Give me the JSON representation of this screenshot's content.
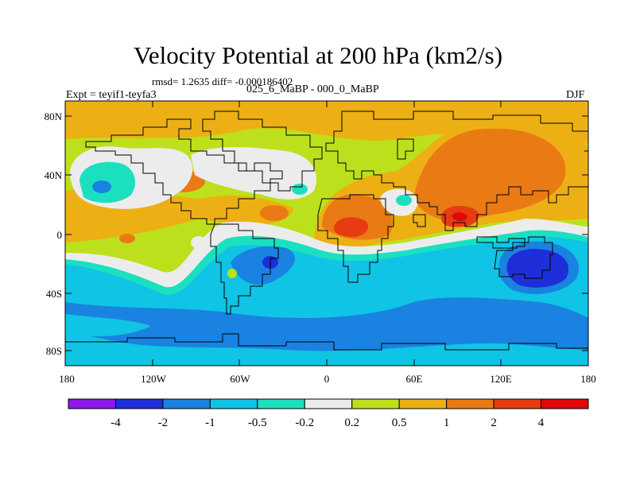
{
  "map": {
    "title": "Velocity Potential at 200 hPa (km2/s)",
    "stats": "rmsd= 1.2635 diff= -0.000186402",
    "experiment": "Expt = teyif1-teyfa3",
    "subtitle": "025_6_MaBP - 000_0_MaBP",
    "season": "DJF",
    "lat_ticks": [
      "80N",
      "40N",
      "0",
      "40S",
      "80S"
    ],
    "lon_ticks": [
      "180",
      "120W",
      "60W",
      "0",
      "60E",
      "120E",
      "180"
    ]
  },
  "colorbar": {
    "colors": [
      "#8c1aea",
      "#1e2ed8",
      "#1a82e0",
      "#0fc4e4",
      "#1ae0c0",
      "#ececec",
      "#bde01c",
      "#ecb014",
      "#ea7a14",
      "#e63c10",
      "#e00808"
    ],
    "labels": [
      "-4",
      "-2",
      "-1",
      "-0.5",
      "-0.2",
      "0.2",
      "0.5",
      "1",
      "2",
      "4"
    ]
  }
}
